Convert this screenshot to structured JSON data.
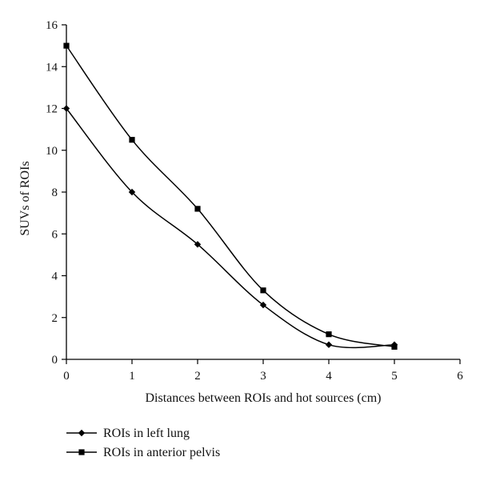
{
  "chart_data": {
    "type": "line",
    "xlabel": "Distances between ROIs and hot sources (cm)",
    "ylabel": "SUVs of ROIs",
    "xlim": [
      0,
      6
    ],
    "ylim": [
      0,
      16
    ],
    "x_ticks": [
      0,
      1,
      2,
      3,
      4,
      5,
      6
    ],
    "y_ticks": [
      0,
      2,
      4,
      6,
      8,
      10,
      12,
      14,
      16
    ],
    "grid": false,
    "legend_position": "bottom-left, below plot",
    "x": [
      0,
      1,
      2,
      3,
      4,
      5
    ],
    "series": [
      {
        "name": "ROIs in left lung",
        "marker": "diamond",
        "color": "#000000",
        "values": [
          12.0,
          8.0,
          5.5,
          2.6,
          0.7,
          0.7
        ]
      },
      {
        "name": "ROIs in anterior pelvis",
        "marker": "square",
        "color": "#000000",
        "values": [
          15.0,
          10.5,
          7.2,
          3.3,
          1.2,
          0.6
        ]
      }
    ]
  }
}
